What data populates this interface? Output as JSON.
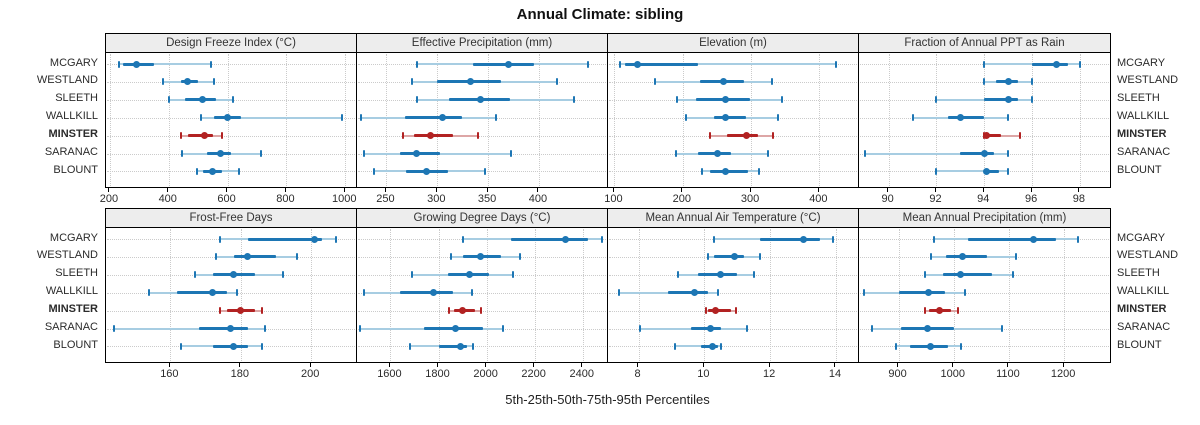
{
  "title": "Annual Climate: sibling",
  "caption": "5th-25th-50th-75th-95th Percentiles",
  "sites": [
    "MCGARY",
    "WESTLAND",
    "SLEETH",
    "WALLKILL",
    "MINSTER",
    "SARANAC",
    "BLOUNT"
  ],
  "highlight_site": "MINSTER",
  "colors": {
    "series": "#1d76b4",
    "series_light": "#a7cde2",
    "highlight": "#b22222",
    "highlight_light": "#dda6a6",
    "header_bg": "#ededed",
    "grid": "#cbcbcb",
    "border": "#000000",
    "text": "#2b2b2b"
  },
  "chart_data": {
    "type": "dot-interval percentile plot (trellis, 2 rows x 4 cols)",
    "percentile_order": [
      5,
      25,
      50,
      75,
      95
    ],
    "panels": [
      {
        "title": "Design Freeze Index (°C)",
        "xlim": [
          190,
          1040
        ],
        "ticks": [
          200,
          400,
          600,
          800,
          1000
        ],
        "series": [
          {
            "site": "MCGARY",
            "percentiles": [
              230,
              245,
              290,
              350,
              545
            ]
          },
          {
            "site": "WESTLAND",
            "percentiles": [
              380,
              440,
              465,
              500,
              555
            ]
          },
          {
            "site": "SLEETH",
            "percentiles": [
              400,
              455,
              515,
              560,
              620
            ]
          },
          {
            "site": "WALLKILL",
            "percentiles": [
              510,
              555,
              600,
              645,
              990
            ]
          },
          {
            "site": "MINSTER",
            "percentiles": [
              440,
              465,
              520,
              550,
              580
            ]
          },
          {
            "site": "SARANAC",
            "percentiles": [
              445,
              530,
              575,
              610,
              715
            ]
          },
          {
            "site": "BLOUNT",
            "percentiles": [
              495,
              515,
              550,
              580,
              640
            ]
          }
        ]
      },
      {
        "title": "Effective Precipitation (mm)",
        "xlim": [
          222,
          468
        ],
        "ticks": [
          250,
          300,
          350,
          400
        ],
        "series": [
          {
            "site": "MCGARY",
            "percentiles": [
              280,
              335,
              370,
              395,
              448
            ]
          },
          {
            "site": "WESTLAND",
            "percentiles": [
              275,
              300,
              333,
              363,
              418
            ]
          },
          {
            "site": "SLEETH",
            "percentiles": [
              280,
              312,
              343,
              372,
              435
            ]
          },
          {
            "site": "WALLKILL",
            "percentiles": [
              225,
              268,
              305,
              324,
              358
            ]
          },
          {
            "site": "MINSTER",
            "percentiles": [
              266,
              277,
              293,
              315,
              340
            ]
          },
          {
            "site": "SARANAC",
            "percentiles": [
              228,
              263,
              280,
              303,
              373
            ]
          },
          {
            "site": "BLOUNT",
            "percentiles": [
              238,
              269,
              289,
              311,
              347
            ]
          }
        ]
      },
      {
        "title": "Elevation (m)",
        "xlim": [
          92,
          458
        ],
        "ticks": [
          100,
          200,
          300,
          400
        ],
        "series": [
          {
            "site": "MCGARY",
            "percentiles": [
              108,
              115,
              133,
              222,
              425
            ]
          },
          {
            "site": "WESTLAND",
            "percentiles": [
              160,
              225,
              260,
              290,
              330
            ]
          },
          {
            "site": "SLEETH",
            "percentiles": [
              192,
              220,
              262,
              298,
              345
            ]
          },
          {
            "site": "WALLKILL",
            "percentiles": [
              205,
              245,
              263,
              293,
              340
            ]
          },
          {
            "site": "MINSTER",
            "percentiles": [
              240,
              265,
              294,
              310,
              332
            ]
          },
          {
            "site": "SARANAC",
            "percentiles": [
              190,
              222,
              251,
              270,
              325
            ]
          },
          {
            "site": "BLOUNT",
            "percentiles": [
              228,
              240,
              262,
              295,
              312
            ]
          }
        ]
      },
      {
        "title": "Fraction of Annual PPT as Rain",
        "xlim": [
          88.8,
          99.3
        ],
        "ticks": [
          90,
          92,
          94,
          96,
          98
        ],
        "series": [
          {
            "site": "MCGARY",
            "percentiles": [
              94,
              96,
              97,
              97.5,
              98
            ]
          },
          {
            "site": "WESTLAND",
            "percentiles": [
              94,
              94.5,
              95,
              95.4,
              96
            ]
          },
          {
            "site": "SLEETH",
            "percentiles": [
              92,
              94,
              95,
              95.4,
              96
            ]
          },
          {
            "site": "WALLKILL",
            "percentiles": [
              91,
              92.5,
              93,
              94,
              95
            ]
          },
          {
            "site": "MINSTER",
            "percentiles": [
              94,
              94,
              94.1,
              94.7,
              95.5
            ]
          },
          {
            "site": "SARANAC",
            "percentiles": [
              89,
              93,
              94,
              94.4,
              95
            ]
          },
          {
            "site": "BLOUNT",
            "percentiles": [
              92,
              94,
              94.1,
              94.6,
              95
            ]
          }
        ]
      },
      {
        "title": "Frost-Free Days",
        "xlim": [
          142,
          213
        ],
        "ticks": [
          160,
          180,
          200
        ],
        "series": [
          {
            "site": "MCGARY",
            "percentiles": [
              174,
              182,
              201,
              203,
              207
            ]
          },
          {
            "site": "WESTLAND",
            "percentiles": [
              173,
              178,
              182,
              190,
              196
            ]
          },
          {
            "site": "SLEETH",
            "percentiles": [
              167,
              172,
              178,
              184,
              192
            ]
          },
          {
            "site": "WALLKILL",
            "percentiles": [
              154,
              162,
              172,
              176,
              179
            ]
          },
          {
            "site": "MINSTER",
            "percentiles": [
              174,
              176,
              180,
              184,
              186
            ]
          },
          {
            "site": "SARANAC",
            "percentiles": [
              144,
              168,
              177,
              182,
              187
            ]
          },
          {
            "site": "BLOUNT",
            "percentiles": [
              163,
              172,
              178,
              182,
              186
            ]
          }
        ]
      },
      {
        "title": "Growing Degree Days (°C)",
        "xlim": [
          1465,
          2505
        ],
        "ticks": [
          1600,
          1800,
          2000,
          2200,
          2400
        ],
        "series": [
          {
            "site": "MCGARY",
            "percentiles": [
              1900,
              2100,
              2330,
              2420,
              2480
            ]
          },
          {
            "site": "WESTLAND",
            "percentiles": [
              1850,
              1900,
              1975,
              2060,
              2140
            ]
          },
          {
            "site": "SLEETH",
            "percentiles": [
              1690,
              1840,
              1930,
              2010,
              2110
            ]
          },
          {
            "site": "WALLKILL",
            "percentiles": [
              1490,
              1640,
              1780,
              1860,
              1940
            ]
          },
          {
            "site": "MINSTER",
            "percentiles": [
              1845,
              1865,
              1900,
              1950,
              1975
            ]
          },
          {
            "site": "SARANAC",
            "percentiles": [
              1475,
              1740,
              1870,
              1985,
              2070
            ]
          },
          {
            "site": "BLOUNT",
            "percentiles": [
              1680,
              1800,
              1890,
              1920,
              1945
            ]
          }
        ]
      },
      {
        "title": "Mean Annual Air Temperature (°C)",
        "xlim": [
          7.1,
          14.7
        ],
        "ticks": [
          8,
          10,
          12,
          14
        ],
        "series": [
          {
            "site": "MCGARY",
            "percentiles": [
              10.3,
              11.7,
              13.0,
              13.5,
              13.9
            ]
          },
          {
            "site": "WESTLAND",
            "percentiles": [
              10.1,
              10.3,
              10.9,
              11.2,
              11.7
            ]
          },
          {
            "site": "SLEETH",
            "percentiles": [
              9.2,
              9.8,
              10.5,
              11.0,
              11.5
            ]
          },
          {
            "site": "WALLKILL",
            "percentiles": [
              7.4,
              8.9,
              9.7,
              10.1,
              10.4
            ]
          },
          {
            "site": "MINSTER",
            "percentiles": [
              10.05,
              10.1,
              10.35,
              10.8,
              10.95
            ]
          },
          {
            "site": "SARANAC",
            "percentiles": [
              8.05,
              9.6,
              10.2,
              10.5,
              11.3
            ]
          },
          {
            "site": "BLOUNT",
            "percentiles": [
              9.1,
              9.9,
              10.25,
              10.4,
              10.5
            ]
          }
        ]
      },
      {
        "title": "Mean Annual Precipitation (mm)",
        "xlim": [
          830,
          1285
        ],
        "ticks": [
          900,
          1000,
          1100,
          1200
        ],
        "series": [
          {
            "site": "MCGARY",
            "percentiles": [
              965,
              1025,
              1145,
              1185,
              1225
            ]
          },
          {
            "site": "WESTLAND",
            "percentiles": [
              958,
              985,
              1015,
              1060,
              1112
            ]
          },
          {
            "site": "SLEETH",
            "percentiles": [
              948,
              980,
              1013,
              1070,
              1108
            ]
          },
          {
            "site": "WALLKILL",
            "percentiles": [
              838,
              900,
              955,
              985,
              1020
            ]
          },
          {
            "site": "MINSTER",
            "percentiles": [
              948,
              955,
              975,
              995,
              1008
            ]
          },
          {
            "site": "SARANAC",
            "percentiles": [
              852,
              905,
              953,
              1000,
              1088
            ]
          },
          {
            "site": "BLOUNT",
            "percentiles": [
              895,
              920,
              958,
              990,
              1013
            ]
          }
        ]
      }
    ]
  }
}
